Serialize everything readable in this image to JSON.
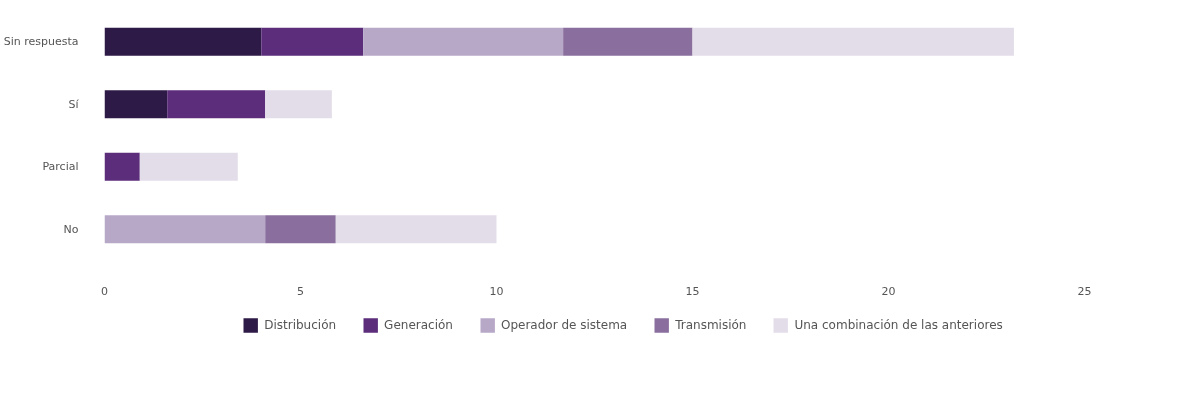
{
  "chart_data": {
    "type": "bar",
    "orientation": "horizontal",
    "stacked": true,
    "categories": [
      "Sin respuesta",
      "Sí",
      "Parcial",
      "No"
    ],
    "series": [
      {
        "name": "Distribución",
        "color": "#2e1a47",
        "values": [
          4.0,
          1.6,
          null,
          null
        ]
      },
      {
        "name": "Generación",
        "color": "#5b2d7a",
        "values": [
          2.6,
          2.5,
          0.9,
          null
        ]
      },
      {
        "name": "Operador de sistema",
        "color": "#b7a8c8",
        "values": [
          5.1,
          null,
          null,
          4.1
        ]
      },
      {
        "name": "Transmisión",
        "color": "#8a6f9e",
        "values": [
          3.3,
          null,
          null,
          1.8
        ]
      },
      {
        "name": "Una combinación de las anteriores",
        "color": "#e3dde9",
        "values": [
          8.2,
          1.7,
          2.5,
          4.1
        ]
      }
    ],
    "xlim": [
      0,
      25
    ],
    "xticks": [
      0,
      5,
      10,
      15,
      20,
      25
    ],
    "grid": false,
    "legend": "bottom"
  }
}
